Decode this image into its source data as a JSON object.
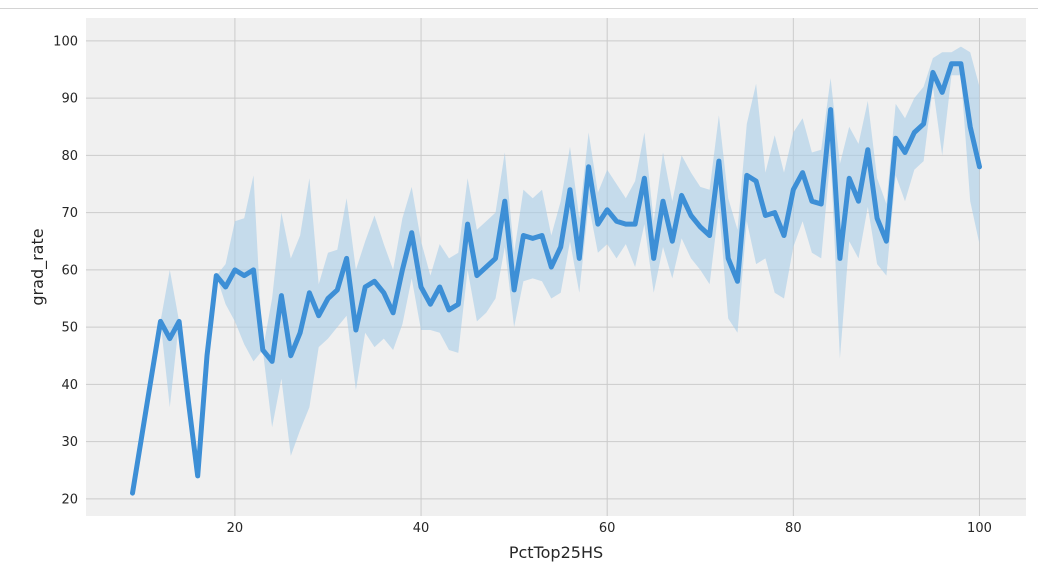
{
  "chart_data": {
    "type": "line",
    "xlabel": "PctTop25HS",
    "ylabel": "grad_rate",
    "xlim": [
      4,
      105
    ],
    "ylim": [
      17,
      104
    ],
    "xticks": [
      20,
      40,
      60,
      80,
      100
    ],
    "yticks": [
      20,
      30,
      40,
      50,
      60,
      70,
      80,
      90,
      100
    ],
    "grid": true,
    "colors": {
      "line": "#3d8fd6",
      "band": "#a9cde8",
      "background": "#f0f0f0",
      "grid": "#cbcbcb"
    },
    "series": [
      {
        "x": [
          9,
          10,
          11,
          12,
          13,
          14,
          15,
          16,
          17,
          18,
          19,
          20,
          21,
          22,
          23,
          24,
          25,
          26,
          27,
          28,
          29,
          30,
          31,
          32,
          33,
          34,
          35,
          36,
          37,
          38,
          39,
          40,
          41,
          42,
          43,
          44,
          45,
          46,
          47,
          48,
          49,
          50,
          51,
          52,
          53,
          54,
          55,
          56,
          57,
          58,
          59,
          60,
          61,
          62,
          63,
          64,
          65,
          66,
          67,
          68,
          69,
          70,
          71,
          72,
          73,
          74,
          75,
          76,
          77,
          78,
          79,
          80,
          81,
          82,
          83,
          84,
          85,
          86,
          87,
          88,
          89,
          90,
          91,
          92,
          93,
          94,
          95,
          96,
          97,
          98,
          99,
          100
        ],
        "y": [
          21,
          31,
          41,
          51,
          48,
          51,
          37,
          24,
          45,
          59,
          57,
          60,
          59,
          60,
          46,
          44,
          55.5,
          45,
          49,
          56,
          52,
          55,
          56.5,
          62,
          49.5,
          57,
          58,
          56,
          52.5,
          60,
          66.5,
          57,
          54,
          57,
          53,
          54,
          68,
          59,
          60.5,
          62,
          72,
          56.5,
          66,
          65.5,
          66,
          60.5,
          64,
          74,
          62,
          78,
          68,
          70.5,
          68.5,
          68,
          68,
          76,
          62,
          72,
          65,
          73,
          69.5,
          67.5,
          66,
          79,
          62,
          58,
          76.5,
          75.5,
          69.5,
          70,
          66,
          74,
          77,
          72,
          71.5,
          88,
          62,
          76,
          72,
          81,
          69,
          65,
          83,
          80.5,
          84,
          85.5,
          94.5,
          91,
          96,
          96,
          85,
          78
        ],
        "lo": [
          21,
          31,
          41,
          51,
          36,
          51,
          37,
          24,
          45,
          59,
          54,
          51,
          47,
          44,
          46,
          32.5,
          41,
          27.5,
          32,
          36,
          46.5,
          48,
          50,
          52,
          39,
          49,
          46.5,
          48,
          46,
          50.5,
          58.5,
          49.5,
          49.5,
          49,
          46,
          45.5,
          60,
          51,
          52.5,
          55,
          64,
          50,
          58,
          58.5,
          58,
          55,
          56,
          65,
          56,
          71.5,
          63,
          64.5,
          62,
          64.5,
          60.5,
          68,
          56,
          64,
          58.5,
          65.5,
          62,
          60,
          57.5,
          71,
          51.5,
          49,
          68.5,
          61,
          62,
          56,
          55,
          64,
          68.5,
          63,
          62,
          80,
          44.5,
          65,
          62,
          71,
          61,
          59,
          76.5,
          72,
          77.5,
          79,
          92,
          80,
          94,
          94,
          72,
          64.5
        ],
        "hi": [
          21,
          31,
          41,
          51,
          60,
          51,
          37,
          24,
          45,
          59,
          61,
          68.5,
          69,
          76.5,
          46,
          55,
          70,
          62,
          66,
          76,
          57.5,
          63,
          63.5,
          72.5,
          60,
          65,
          69.5,
          64.5,
          60,
          69,
          74.5,
          65,
          59,
          64.5,
          62,
          63,
          76,
          67,
          68.5,
          70,
          80.5,
          63,
          74,
          72.5,
          74,
          66,
          72,
          81.5,
          69,
          84,
          73.5,
          77.5,
          75,
          72.5,
          75.5,
          84,
          68.5,
          80.5,
          72,
          80,
          77,
          74.5,
          74,
          87,
          72.5,
          67,
          85.5,
          92.5,
          77,
          83.5,
          77,
          84,
          86.5,
          80.5,
          81,
          93.5,
          78.5,
          85,
          82,
          89.5,
          76,
          71.5,
          89,
          86.5,
          90,
          92,
          97,
          98,
          98,
          99,
          98,
          92
        ]
      }
    ]
  }
}
